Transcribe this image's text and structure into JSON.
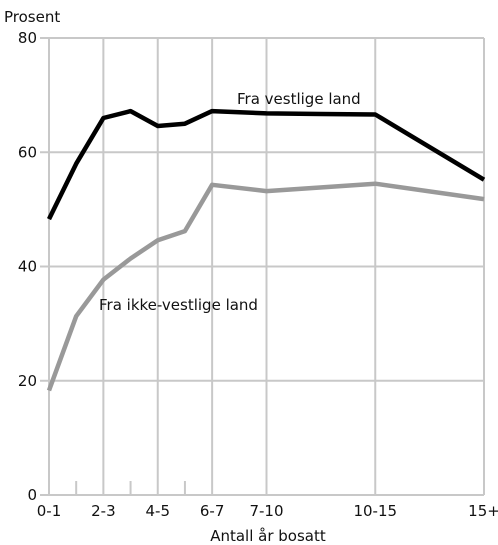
{
  "chart_data": {
    "type": "line",
    "title": "",
    "ylabel": "Prosent",
    "xlabel": "Antall år bosatt",
    "ylim": [
      0,
      80
    ],
    "xlim": [
      0,
      16
    ],
    "grid": true,
    "yticks": [
      0,
      20,
      40,
      60,
      80
    ],
    "xticks": [
      {
        "x": 0,
        "label": "0-1"
      },
      {
        "x": 2,
        "label": "2-3"
      },
      {
        "x": 4,
        "label": "4-5"
      },
      {
        "x": 6,
        "label": "6-7"
      },
      {
        "x": 8,
        "label": "7-10"
      },
      {
        "x": 12,
        "label": "10-15"
      },
      {
        "x": 16,
        "label": "15+"
      }
    ],
    "minor_ticks": [
      1,
      3,
      5
    ],
    "series": [
      {
        "name": "Fra vestlige land",
        "color": "#000000",
        "x": [
          0,
          1,
          2,
          3,
          4,
          5,
          6,
          8,
          10,
          12,
          16
        ],
        "y": [
          48.3,
          58,
          66,
          67.2,
          64.6,
          65,
          67.2,
          66.8,
          66.7,
          66.6,
          55.2
        ]
      },
      {
        "name": "Fra ikke-vestlige land",
        "color": "#999999",
        "x": [
          0,
          1,
          2,
          3,
          4,
          5,
          6,
          8,
          12,
          16
        ],
        "y": [
          18.3,
          31.3,
          37.7,
          41.4,
          44.6,
          46.2,
          54.3,
          53.2,
          54.5,
          51.8
        ]
      }
    ]
  }
}
